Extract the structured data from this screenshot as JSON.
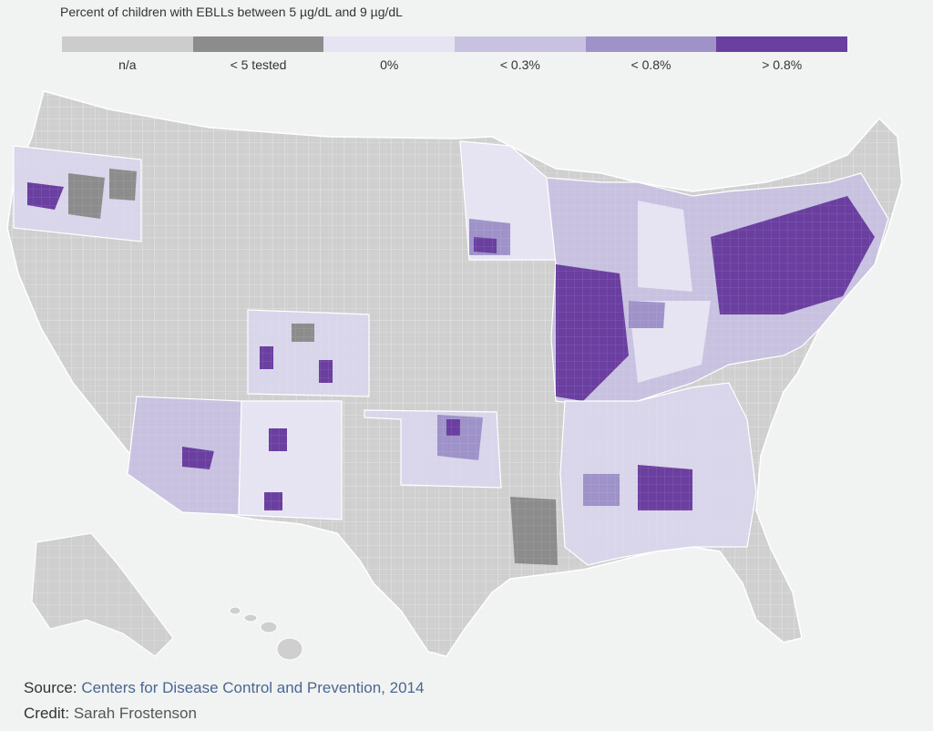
{
  "title": "Percent of children with EBLLs between 5 µg/dL and 9 µg/dL",
  "legend": [
    {
      "label": "n/a",
      "color": "#cccccc"
    },
    {
      "label": "< 5 tested",
      "color": "#8c8c8c"
    },
    {
      "label": "0%",
      "color": "#e6e3f2"
    },
    {
      "label": "< 0.3%",
      "color": "#c8c2e0"
    },
    {
      "label": "< 0.8%",
      "color": "#9e92c8"
    },
    {
      "label": "> 0.8%",
      "color": "#6a3fa0"
    }
  ],
  "footer": {
    "source_label": "Source:",
    "source_value": "Centers for Disease Control and Prevention, 2014",
    "credit_label": "Credit:",
    "credit_value": "Sarah Frostenson"
  }
}
